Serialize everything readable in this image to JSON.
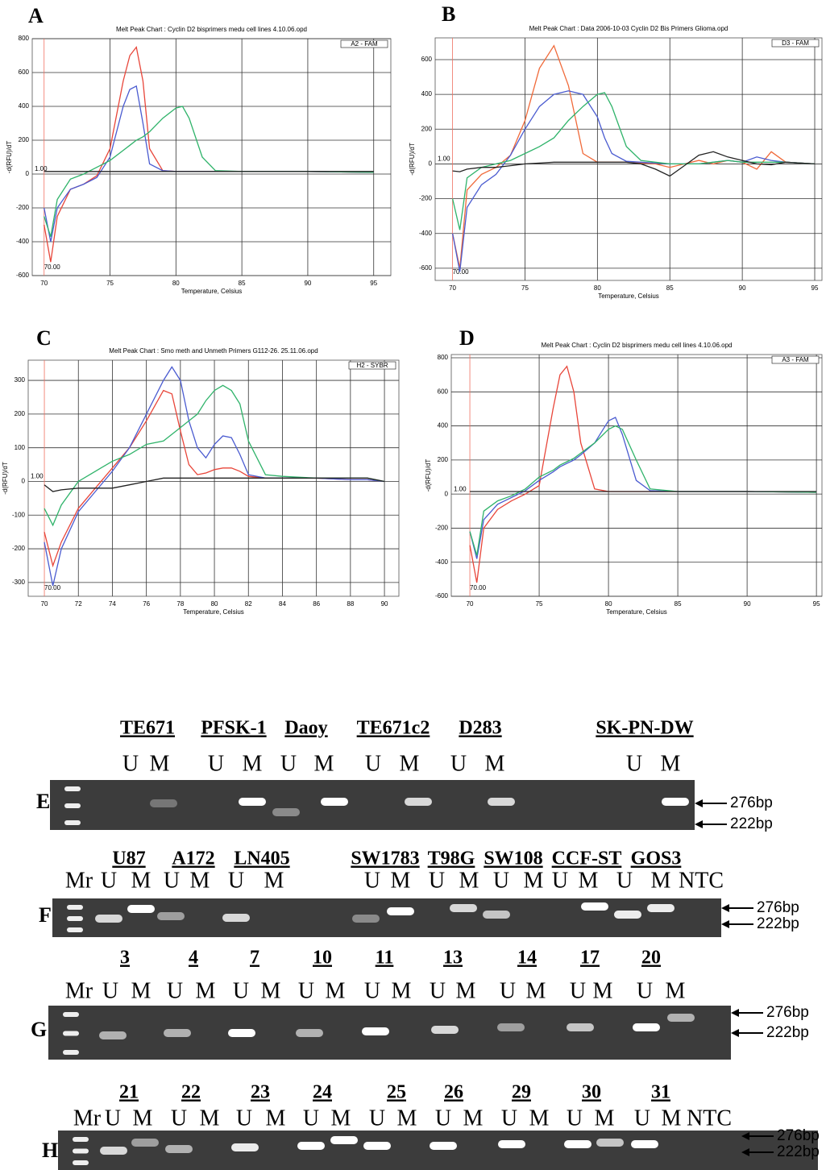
{
  "chart_data": [
    {
      "type": "line",
      "letter": "A",
      "title": "Melt Peak Chart : Cyclin D2 bisprimers medu cell lines 4.10.06.opd",
      "legend_label": "A2 - FAM",
      "x_label": "Temperature, Celsius",
      "y_label": "-d(RFU)/dT",
      "annotations": [
        "1.00",
        "70.00"
      ],
      "xlim": [
        69.1,
        96.3
      ],
      "xticks": [
        70,
        75,
        80,
        85,
        90,
        95
      ],
      "ylim": [
        -600,
        800
      ],
      "yticks": [
        -600,
        -400,
        -200,
        0,
        200,
        400,
        600,
        800
      ],
      "x": [
        70,
        70.5,
        71,
        72,
        73,
        74,
        75,
        76,
        76.5,
        77,
        77.5,
        78,
        79,
        80,
        80.5,
        81,
        82,
        83,
        85,
        90,
        95
      ],
      "series": [
        {
          "color": "#e8463a",
          "values": [
            -300,
            -520,
            -250,
            -90,
            -60,
            -10,
            150,
            550,
            700,
            750,
            550,
            150,
            20,
            15,
            15,
            15,
            15,
            15,
            15,
            15,
            10
          ]
        },
        {
          "color": "#4a5bd0",
          "values": [
            -200,
            -400,
            -200,
            -90,
            -60,
            -20,
            100,
            400,
            500,
            520,
            300,
            60,
            20,
            15,
            15,
            15,
            15,
            15,
            15,
            15,
            10
          ]
        },
        {
          "color": "#2fb36a",
          "values": [
            -250,
            -370,
            -150,
            -30,
            0,
            40,
            80,
            140,
            170,
            200,
            220,
            250,
            330,
            390,
            400,
            330,
            100,
            20,
            15,
            15,
            10
          ]
        },
        {
          "color": "#222222",
          "values": [
            15,
            15,
            15,
            15,
            15,
            15,
            15,
            15,
            15,
            15,
            15,
            15,
            15,
            15,
            15,
            15,
            15,
            15,
            15,
            15,
            15
          ]
        }
      ]
    },
    {
      "type": "line",
      "letter": "B",
      "title": "Melt Peak Chart : Data 2006-10-03 Cyclin D2 Bis Primers Glioma.opd",
      "legend_label": "D3 - FAM",
      "x_label": "Temperature, Celsius",
      "y_label": "-d(RFU)/dT",
      "annotations": [
        "1.00",
        "70.00"
      ],
      "xlim": [
        68.8,
        95.5
      ],
      "xticks": [
        70,
        75,
        80,
        85,
        90,
        95
      ],
      "ylim": [
        -670,
        725
      ],
      "yticks": [
        -600,
        -400,
        -200,
        0,
        200,
        400,
        600
      ],
      "x": [
        70,
        70.5,
        71,
        72,
        73,
        74,
        75,
        76,
        77,
        78,
        79,
        80,
        80.5,
        81,
        82,
        83,
        84,
        85,
        86,
        87,
        88,
        89,
        90,
        91,
        92,
        93,
        95
      ],
      "series": [
        {
          "color": "#f06a3a",
          "values": [
            -400,
            -600,
            -150,
            -60,
            -20,
            50,
            250,
            550,
            680,
            450,
            60,
            10,
            10,
            10,
            10,
            5,
            0,
            -20,
            0,
            20,
            0,
            20,
            10,
            -30,
            70,
            10,
            0
          ]
        },
        {
          "color": "#4a5bd0",
          "values": [
            -400,
            -620,
            -250,
            -120,
            -60,
            50,
            200,
            330,
            400,
            420,
            400,
            270,
            150,
            60,
            15,
            10,
            5,
            0,
            0,
            0,
            10,
            20,
            10,
            40,
            20,
            10,
            0
          ]
        },
        {
          "color": "#2fb36a",
          "values": [
            -200,
            -380,
            -80,
            -20,
            0,
            20,
            60,
            100,
            150,
            250,
            330,
            400,
            410,
            330,
            100,
            20,
            10,
            0,
            0,
            0,
            10,
            20,
            10,
            10,
            10,
            10,
            0
          ]
        },
        {
          "color": "#222222",
          "values": [
            -40,
            -45,
            -30,
            -20,
            -20,
            -10,
            0,
            5,
            10,
            10,
            10,
            10,
            10,
            10,
            10,
            0,
            -30,
            -70,
            -10,
            50,
            70,
            40,
            20,
            0,
            -5,
            10,
            0
          ]
        }
      ]
    },
    {
      "type": "line",
      "letter": "C",
      "title": "Melt Peak Chart : Smo meth and Unmeth Primers G112-26. 25.11.06.opd",
      "legend_label": "H2 - SYBR",
      "x_label": "Temperature, Celsius",
      "y_label": "-d(RFU)/dT",
      "annotations": [
        "1.00",
        "70.00"
      ],
      "xlim": [
        69.05,
        90.85
      ],
      "xticks": [
        70,
        72,
        74,
        76,
        78,
        80,
        82,
        84,
        86,
        88,
        90
      ],
      "ylim": [
        -341,
        360
      ],
      "yticks": [
        -300,
        -200,
        -100,
        0,
        100,
        200,
        300
      ],
      "x": [
        70,
        70.5,
        71,
        72,
        73,
        74,
        75,
        76,
        77,
        77.5,
        78,
        78.5,
        79,
        79.5,
        80,
        80.5,
        81,
        81.5,
        82,
        83,
        84,
        86,
        88,
        89,
        90
      ],
      "series": [
        {
          "color": "#e8463a",
          "values": [
            -150,
            -250,
            -180,
            -80,
            -20,
            40,
            100,
            180,
            270,
            260,
            150,
            50,
            20,
            25,
            35,
            40,
            40,
            30,
            15,
            10,
            10,
            10,
            5,
            5,
            0
          ]
        },
        {
          "color": "#4a5bd0",
          "values": [
            -180,
            -310,
            -200,
            -90,
            -30,
            30,
            100,
            200,
            300,
            340,
            300,
            180,
            100,
            70,
            110,
            135,
            130,
            80,
            20,
            10,
            10,
            10,
            5,
            5,
            0
          ]
        },
        {
          "color": "#2fb36a",
          "values": [
            -80,
            -130,
            -70,
            0,
            30,
            60,
            80,
            110,
            120,
            140,
            160,
            180,
            200,
            240,
            270,
            285,
            270,
            230,
            120,
            20,
            15,
            10,
            10,
            10,
            0
          ]
        },
        {
          "color": "#222222",
          "values": [
            -10,
            -30,
            -25,
            -20,
            -20,
            -20,
            -10,
            0,
            10,
            10,
            10,
            10,
            10,
            10,
            10,
            10,
            10,
            10,
            10,
            10,
            10,
            10,
            10,
            10,
            0
          ]
        }
      ]
    },
    {
      "type": "line",
      "letter": "D",
      "title": "Melt Peak Chart : Cyclin D2 bisprimers medu cell lines 4.10.06.opd",
      "legend_label": "A3 - FAM",
      "x_label": "Temperature, Celsius",
      "y_label": "-d(RFU)/dT",
      "annotations": [
        "1.00",
        "70.00"
      ],
      "xlim": [
        68.66,
        95.4
      ],
      "xticks": [
        70,
        75,
        80,
        85,
        90,
        95
      ],
      "ylim": [
        -600,
        819
      ],
      "yticks": [
        -600,
        -400,
        -200,
        0,
        200,
        400,
        600,
        800
      ],
      "x": [
        70,
        70.5,
        71,
        72,
        73,
        74,
        75,
        76,
        76.5,
        77,
        77.5,
        78,
        79,
        80,
        80.5,
        81,
        82,
        83,
        85,
        90,
        95
      ],
      "series": [
        {
          "color": "#e8463a",
          "values": [
            -300,
            -520,
            -200,
            -90,
            -40,
            0,
            50,
            500,
            700,
            750,
            600,
            300,
            30,
            15,
            15,
            15,
            15,
            15,
            15,
            15,
            10
          ]
        },
        {
          "color": "#4a5bd0",
          "values": [
            -220,
            -380,
            -150,
            -60,
            -20,
            20,
            80,
            130,
            160,
            180,
            200,
            230,
            300,
            430,
            450,
            350,
            80,
            20,
            15,
            15,
            10
          ]
        },
        {
          "color": "#2fb36a",
          "values": [
            -220,
            -360,
            -100,
            -40,
            -10,
            30,
            100,
            140,
            170,
            190,
            210,
            240,
            300,
            380,
            400,
            380,
            200,
            30,
            15,
            15,
            10
          ]
        },
        {
          "color": "#222222",
          "values": [
            15,
            15,
            15,
            15,
            15,
            15,
            15,
            15,
            15,
            15,
            15,
            15,
            15,
            15,
            15,
            15,
            15,
            15,
            15,
            15,
            15
          ]
        }
      ]
    }
  ],
  "gels": [
    {
      "panel": "E",
      "samples": [
        "TE671",
        "PFSK-1",
        "Daoy",
        "TE671c2",
        "D283",
        "SK-PN-DW"
      ],
      "lanes": [
        "U",
        "M",
        "U",
        "M",
        "U",
        "M",
        "U",
        "M",
        "U",
        "M",
        "U",
        "M"
      ],
      "sizes": [
        "276bp",
        "222bp"
      ]
    },
    {
      "panel": "F",
      "samples": [
        "U87",
        "A172",
        "LN405",
        "SW1783",
        "T98G",
        "SW108",
        "CCF-ST",
        "GOS3"
      ],
      "lanes": [
        "Mr",
        "U",
        "M",
        "U",
        "M",
        "U",
        "M",
        "U",
        "M",
        "U",
        "M",
        "U",
        "M",
        "U",
        "M",
        "U",
        "M",
        "NTC"
      ],
      "sizes": [
        "276bp",
        "222bp"
      ]
    },
    {
      "panel": "G",
      "samples": [
        "3",
        "4",
        "7",
        "10",
        "11",
        "13",
        "14",
        "17",
        "20"
      ],
      "lanes": [
        "Mr",
        "U",
        "M",
        "U",
        "M",
        "U",
        "M",
        "U",
        "M",
        "U",
        "M",
        "U",
        "M",
        "U",
        "M",
        "U",
        "M",
        "U",
        "M"
      ],
      "sizes": [
        "276bp",
        "222bp"
      ]
    },
    {
      "panel": "H",
      "samples": [
        "21",
        "22",
        "23",
        "24",
        "25",
        "26",
        "29",
        "30",
        "31"
      ],
      "lanes": [
        "Mr",
        "U",
        "M",
        "U",
        "M",
        "U",
        "M",
        "U",
        "M",
        "U",
        "M",
        "U",
        "M",
        "U",
        "M",
        "U",
        "M",
        "U",
        "M",
        "NTC"
      ],
      "sizes": [
        "276bp",
        "222bp"
      ]
    }
  ]
}
